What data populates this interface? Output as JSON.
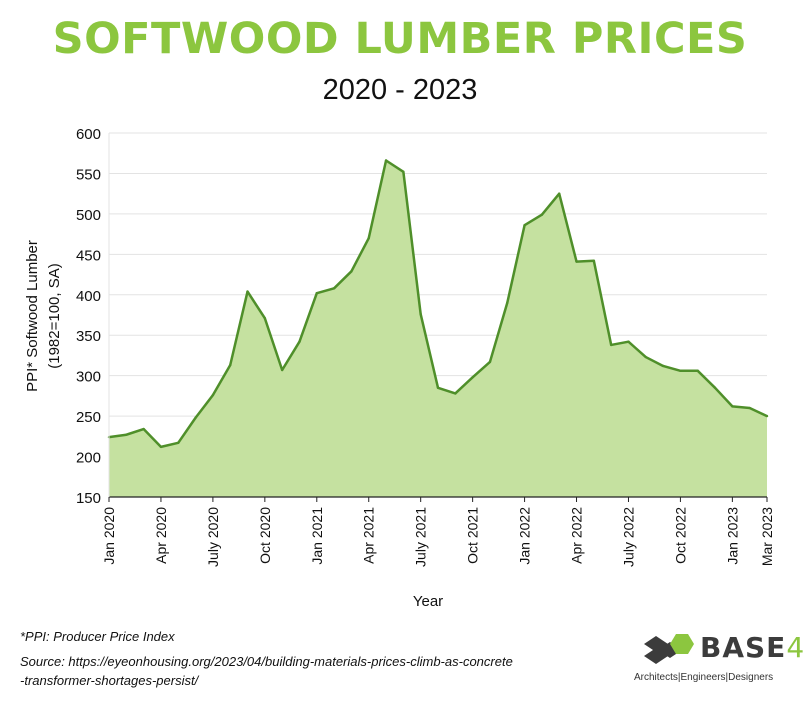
{
  "header": {
    "title": "SOFTWOOD LUMBER PRICES",
    "subtitle": "2020 - 2023"
  },
  "chart_data": {
    "type": "area",
    "title": "SOFTWOOD LUMBER PRICES",
    "subtitle": "2020 - 2023",
    "xlabel": "Year",
    "ylabel_lines": [
      "PPI* Softwood Lumber",
      "(1982=100, SA)"
    ],
    "ylim": [
      150,
      600
    ],
    "yticks": [
      150,
      200,
      250,
      300,
      350,
      400,
      450,
      500,
      550,
      600
    ],
    "x_tick_labels": [
      "Jan 2020",
      "Apr 2020",
      "July 2020",
      "Oct 2020",
      "Jan 2021",
      "Apr 2021",
      "July 2021",
      "Oct 2021",
      "Jan 2022",
      "Apr 2022",
      "July 2022",
      "Oct 2022",
      "Jan 2023",
      "Mar 2023"
    ],
    "x_tick_months": [
      0,
      3,
      6,
      9,
      12,
      15,
      18,
      21,
      24,
      27,
      30,
      33,
      36,
      38
    ],
    "grid": "horizontal",
    "fill_color": "#c5e1a0",
    "line_color": "#4f8f2a",
    "x": [
      "2020-01",
      "2020-02",
      "2020-03",
      "2020-04",
      "2020-05",
      "2020-06",
      "2020-07",
      "2020-08",
      "2020-09",
      "2020-10",
      "2020-11",
      "2020-12",
      "2021-01",
      "2021-02",
      "2021-03",
      "2021-04",
      "2021-05",
      "2021-06",
      "2021-07",
      "2021-08",
      "2021-09",
      "2021-10",
      "2021-11",
      "2021-12",
      "2022-01",
      "2022-02",
      "2022-03",
      "2022-04",
      "2022-05",
      "2022-06",
      "2022-07",
      "2022-08",
      "2022-09",
      "2022-10",
      "2022-11",
      "2022-12",
      "2023-01",
      "2023-02",
      "2023-03"
    ],
    "values": [
      224,
      227,
      234,
      212,
      217,
      248,
      276,
      313,
      404,
      371,
      307,
      342,
      402,
      408,
      429,
      470,
      566,
      552,
      376,
      285,
      278,
      298,
      317,
      390,
      486,
      499,
      525,
      441,
      442,
      338,
      342,
      323,
      312,
      306,
      306,
      285,
      262,
      260,
      250
    ]
  },
  "footnote": "*PPI: Producer Price Index",
  "source": "Source: https://eyeonhousing.org/2023/04/building-materials-prices-climb-as-concrete-transformer-shortages-persist/",
  "source_lines": [
    "Source: https://eyeonhousing.org/2023/04/building-materials-prices-climb-as-concrete",
    "-transformer-shortages-persist/"
  ],
  "logo": {
    "name": "BASE",
    "number": "4",
    "tagline": "Architects|Engineers|Designers",
    "icon": "cube-hexagon-logo-icon"
  }
}
